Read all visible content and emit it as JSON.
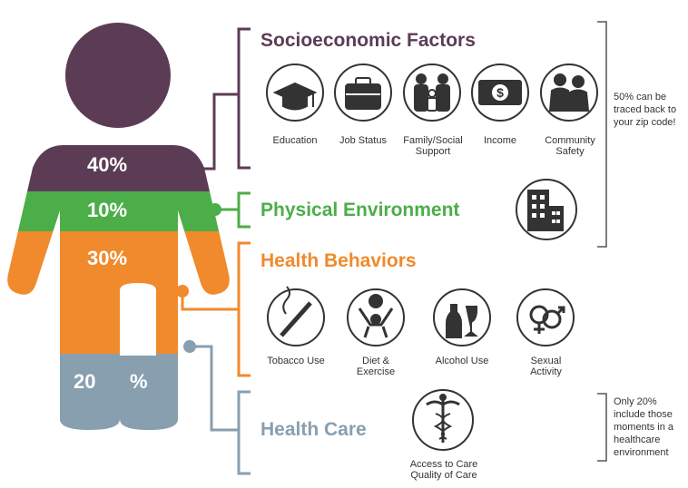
{
  "colors": {
    "socioeconomic": "#5c3c55",
    "physical": "#4cae49",
    "behaviors": "#f08a2c",
    "health_care": "#889fb0",
    "bracket_right": "#555555",
    "icon_stroke": "#333333"
  },
  "figure": {
    "segments": [
      {
        "key": "socioeconomic",
        "label": "40%",
        "color": "#5c3c55"
      },
      {
        "key": "physical",
        "label": "10%",
        "color": "#4cae49"
      },
      {
        "key": "behaviors",
        "label": "30%",
        "color": "#f08a2c"
      },
      {
        "key": "health_care",
        "label_left": "20",
        "label_right": "%",
        "color": "#889fb0"
      }
    ]
  },
  "sections": {
    "socioeconomic": {
      "title": "Socioeconomic Factors",
      "items": [
        {
          "label": "Education",
          "icon": "graduation-cap-icon"
        },
        {
          "label": "Job Status",
          "icon": "briefcase-icon"
        },
        {
          "label": "Family/Social Support",
          "icon": "family-icon"
        },
        {
          "label": "Income",
          "icon": "dollar-bill-icon"
        },
        {
          "label": "Community Safety",
          "icon": "people-embrace-icon"
        }
      ]
    },
    "physical": {
      "title": "Physical Environment",
      "icon": "buildings-icon"
    },
    "behaviors": {
      "title": "Health Behaviors",
      "items": [
        {
          "label": "Tobacco Use",
          "icon": "cigarette-icon"
        },
        {
          "label": "Diet & Exercise",
          "icon": "diet-exercise-icon"
        },
        {
          "label": "Alcohol Use",
          "icon": "alcohol-icon"
        },
        {
          "label": "Sexual Activity",
          "icon": "gender-symbols-icon"
        }
      ]
    },
    "health_care": {
      "title": "Health Care",
      "items": [
        {
          "label": "Access to Care Quality of Care",
          "icon": "caduceus-icon"
        }
      ]
    }
  },
  "notes": {
    "zip_code": "50% can be traced back to your zip code!",
    "healthcare": "Only 20% include those moments in a healthcare environment"
  }
}
